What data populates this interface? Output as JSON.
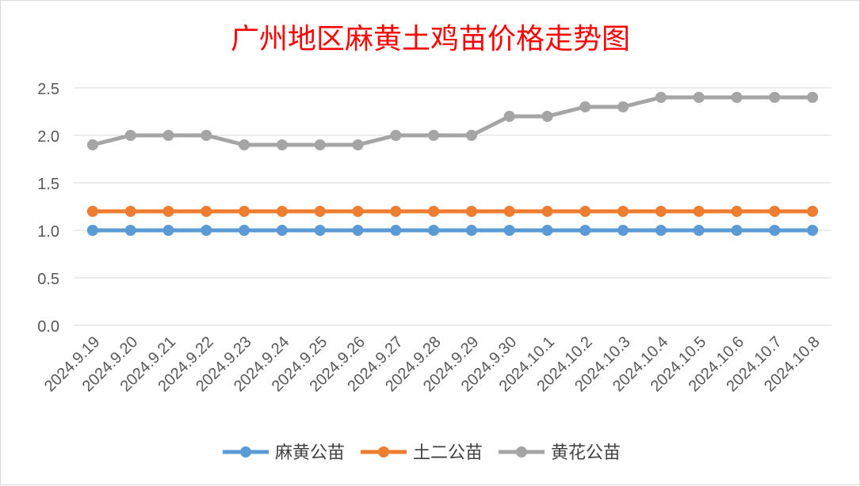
{
  "chart_data": {
    "type": "line",
    "title": "广州地区麻黄土鸡苗价格走势图",
    "title_color": "#ff0000",
    "categories": [
      "2024.9.19",
      "2024.9.20",
      "2024.9.21",
      "2024.9.22",
      "2024.9.23",
      "2024.9.24",
      "2024.9.25",
      "2024.9.26",
      "2024.9.27",
      "2024.9.28",
      "2024.9.29",
      "2024.9.30",
      "2024.10.1",
      "2024.10.2",
      "2024.10.3",
      "2024.10.4",
      "2024.10.5",
      "2024.10.6",
      "2024.10.7",
      "2024.10.8"
    ],
    "series": [
      {
        "name": "麻黄公苗",
        "color": "#5b9bd5",
        "values": [
          1.0,
          1.0,
          1.0,
          1.0,
          1.0,
          1.0,
          1.0,
          1.0,
          1.0,
          1.0,
          1.0,
          1.0,
          1.0,
          1.0,
          1.0,
          1.0,
          1.0,
          1.0,
          1.0,
          1.0
        ]
      },
      {
        "name": "土二公苗",
        "color": "#ed7d31",
        "values": [
          1.2,
          1.2,
          1.2,
          1.2,
          1.2,
          1.2,
          1.2,
          1.2,
          1.2,
          1.2,
          1.2,
          1.2,
          1.2,
          1.2,
          1.2,
          1.2,
          1.2,
          1.2,
          1.2,
          1.2
        ]
      },
      {
        "name": "黄花公苗",
        "color": "#a5a5a5",
        "values": [
          1.9,
          2.0,
          2.0,
          2.0,
          1.9,
          1.9,
          1.9,
          1.9,
          2.0,
          2.0,
          2.0,
          2.2,
          2.2,
          2.3,
          2.3,
          2.4,
          2.4,
          2.4,
          2.4,
          2.4
        ]
      }
    ],
    "y_ticks": [
      "0.0",
      "0.5",
      "1.0",
      "1.5",
      "2.0",
      "2.5"
    ],
    "ylim": [
      0,
      2.5
    ],
    "xlabel": "",
    "ylabel": "",
    "grid": true,
    "legend_position": "bottom"
  }
}
